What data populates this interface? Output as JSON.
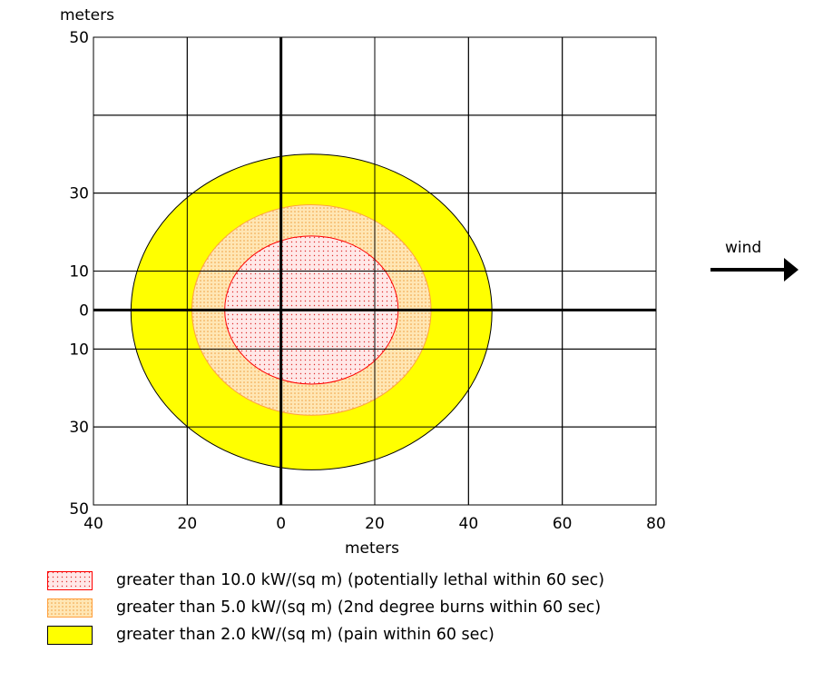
{
  "chart_data": {
    "type": "contour",
    "x_axis": {
      "label": "meters",
      "range": [
        -40,
        80
      ],
      "ticks": [
        -40,
        -20,
        0,
        20,
        40,
        60,
        80
      ],
      "tick_labels": [
        "40",
        "20",
        "0",
        "20",
        "40",
        "60",
        "80"
      ]
    },
    "y_axis": {
      "label": "meters",
      "range": [
        -50,
        70
      ],
      "ticks": [
        50,
        30,
        10,
        0,
        -10,
        -30,
        -50
      ],
      "tick_labels": [
        "50",
        "30",
        "10",
        "0",
        "10",
        "30",
        "50"
      ]
    },
    "grid": true,
    "zones": [
      {
        "label": "greater than 2.0 kW/(sq m) (pain within 60 sec)",
        "color": "#ffff00",
        "stroke": "#000000",
        "pattern": "solid",
        "center": [
          6,
          1
        ],
        "x_extent": [
          -32,
          45
        ],
        "y_extent": [
          -41,
          40
        ]
      },
      {
        "label": "greater than 5.0 kW/(sq m) (2nd degree burns within 60 sec)",
        "color": "#ffe0a0",
        "stroke": "#ffa040",
        "pattern": "dots",
        "center": [
          6,
          0
        ],
        "x_extent": [
          -19,
          32
        ],
        "y_extent": [
          -27,
          27
        ]
      },
      {
        "label": "greater than 10.0 kW/(sq m) (potentially lethal within 60 sec)",
        "color": "#ffe6e6",
        "stroke": "#ff0000",
        "pattern": "dots",
        "center": [
          6,
          0
        ],
        "x_extent": [
          -12,
          25
        ],
        "y_extent": [
          -19,
          19
        ]
      }
    ],
    "wind_label": "wind"
  }
}
